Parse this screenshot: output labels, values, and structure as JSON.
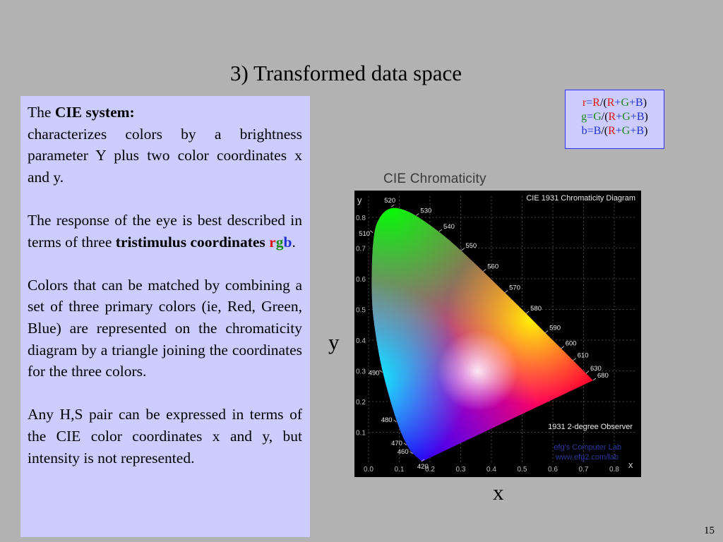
{
  "slide": {
    "title": "3) Transformed data space",
    "page_number": "15"
  },
  "textbox": {
    "p1_lead": "The ",
    "p1_bold": "CIE system:",
    "p1_body": "characterizes colors by a brightness parameter Y plus two color coordinates x and y.",
    "p2_body": "The response of the eye is best described in terms of three ",
    "p2_bold": "tristimulus coordinates",
    "p2_r": "r",
    "p2_g": "g",
    "p2_b": "b",
    "p2_end": ".",
    "p3_body": "Colors that can be matched by combining a set of three primary colors (ie, Red, Green, Blue) are represented on the chromaticity diagram by a triangle joining the coordinates for the three colors.",
    "p4_body": "Any H,S pair can be expressed in terms of the CIE color coordinates x and y, but intensity is not represented."
  },
  "formula": {
    "rows": [
      {
        "lhs": "r",
        "num": "R",
        "lhs_color": "#e01010"
      },
      {
        "lhs": "g",
        "num": "G",
        "lhs_color": "#1a8a1a"
      },
      {
        "lhs": "b",
        "num": "B",
        "lhs_color": "#2030d0"
      }
    ],
    "eq": "=",
    "slash": "/",
    "open": "(",
    "close": ")",
    "plus": "+",
    "den_r": "R",
    "den_g": "G",
    "den_b": "B"
  },
  "chart_caption": "CIE Chromaticity",
  "axis_labels": {
    "y": "y",
    "x": "x"
  },
  "chart_data": {
    "type": "scatter",
    "title": "CIE 1931 Chromaticity Diagram",
    "observer": "1931 2-degree Observer",
    "credit_lines": [
      "efg's Computer Lab",
      "www.efg2.com/lab"
    ],
    "xlabel": "x",
    "ylabel": "y",
    "xlim": [
      0,
      0.9
    ],
    "ylim": [
      0,
      0.9
    ],
    "x_ticks": [
      "0.0",
      "0.1",
      "0.2",
      "0.3",
      "0.4",
      "0.5",
      "0.6",
      "0.7",
      "0.8"
    ],
    "y_ticks": [
      "0.1",
      "0.2",
      "0.3",
      "0.4",
      "0.5",
      "0.6",
      "0.7",
      "0.8"
    ],
    "grid": true,
    "wavelength_labels": [
      {
        "nm": "420",
        "x": 0.172,
        "y": 0.005
      },
      {
        "nm": "460",
        "x": 0.144,
        "y": 0.03
      },
      {
        "nm": "470",
        "x": 0.124,
        "y": 0.058
      },
      {
        "nm": "480",
        "x": 0.091,
        "y": 0.133
      },
      {
        "nm": "490",
        "x": 0.045,
        "y": 0.295
      },
      {
        "nm": "510",
        "x": 0.014,
        "y": 0.75
      },
      {
        "nm": "520",
        "x": 0.074,
        "y": 0.834
      },
      {
        "nm": "530",
        "x": 0.155,
        "y": 0.806
      },
      {
        "nm": "540",
        "x": 0.23,
        "y": 0.754
      },
      {
        "nm": "550",
        "x": 0.302,
        "y": 0.692
      },
      {
        "nm": "560",
        "x": 0.373,
        "y": 0.624
      },
      {
        "nm": "570",
        "x": 0.444,
        "y": 0.555
      },
      {
        "nm": "580",
        "x": 0.513,
        "y": 0.487
      },
      {
        "nm": "590",
        "x": 0.575,
        "y": 0.424
      },
      {
        "nm": "600",
        "x": 0.627,
        "y": 0.373
      },
      {
        "nm": "610",
        "x": 0.666,
        "y": 0.334
      },
      {
        "nm": "630",
        "x": 0.708,
        "y": 0.292
      },
      {
        "nm": "680",
        "x": 0.731,
        "y": 0.269
      }
    ]
  }
}
